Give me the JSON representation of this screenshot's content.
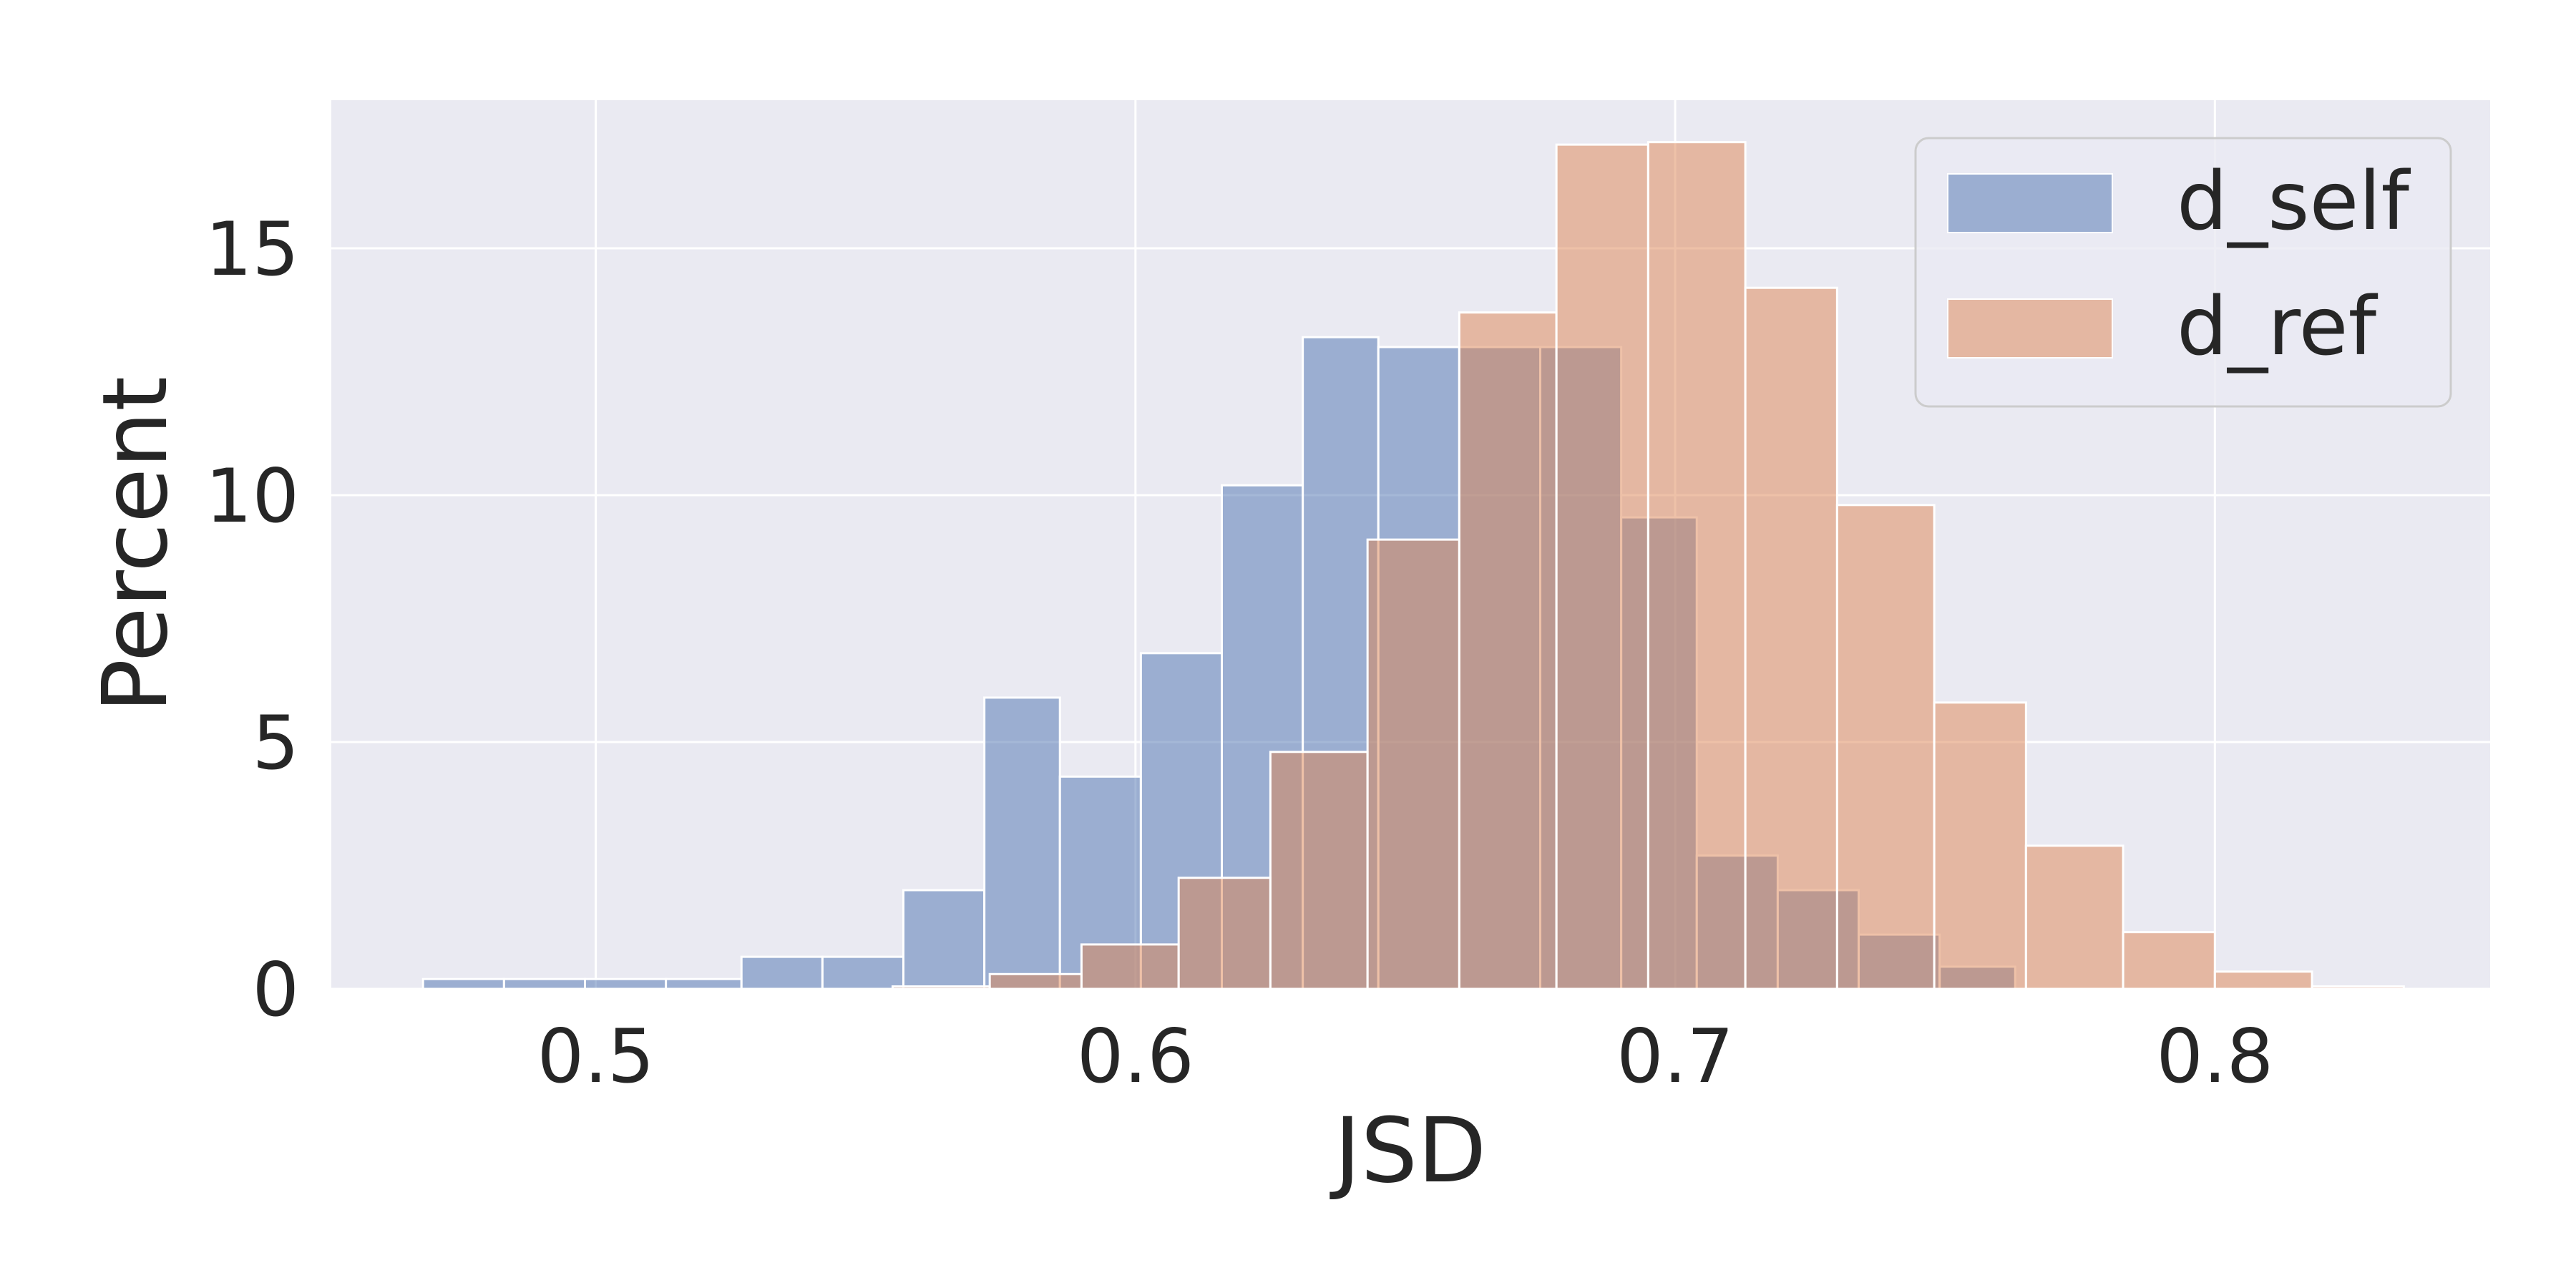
{
  "chart_data": {
    "type": "histogram",
    "xlabel": "JSD",
    "ylabel": "Percent",
    "xlim": [
      0.451,
      0.851
    ],
    "ylim": [
      0,
      18
    ],
    "xticks": [
      "0.5",
      "0.6",
      "0.7",
      "0.8"
    ],
    "xtick_values": [
      0.5,
      0.6,
      0.7,
      0.8
    ],
    "yticks": [
      "0",
      "5",
      "10",
      "15"
    ],
    "ytick_values": [
      0,
      5,
      10,
      15
    ],
    "grid": true,
    "legend_position": "top-right",
    "series": [
      {
        "name": "d_self",
        "color": "#4C72B0",
        "bins": [
          [
            0.468,
            0.483,
            0.2
          ],
          [
            0.483,
            0.498,
            0.2
          ],
          [
            0.498,
            0.513,
            0.2
          ],
          [
            0.513,
            0.527,
            0.2
          ],
          [
            0.527,
            0.542,
            0.65
          ],
          [
            0.542,
            0.557,
            0.65
          ],
          [
            0.557,
            0.572,
            2.0
          ],
          [
            0.572,
            0.586,
            5.9
          ],
          [
            0.586,
            0.601,
            4.3
          ],
          [
            0.601,
            0.616,
            6.8
          ],
          [
            0.616,
            0.631,
            10.2
          ],
          [
            0.631,
            0.645,
            13.2
          ],
          [
            0.645,
            0.66,
            13.0
          ],
          [
            0.66,
            0.675,
            13.0
          ],
          [
            0.675,
            0.69,
            13.0
          ],
          [
            0.69,
            0.704,
            9.55
          ],
          [
            0.704,
            0.719,
            2.7
          ],
          [
            0.719,
            0.734,
            2.0
          ],
          [
            0.734,
            0.749,
            1.1
          ],
          [
            0.749,
            0.763,
            0.45
          ]
        ]
      },
      {
        "name": "d_ref",
        "color": "#DD8452",
        "bins": [
          [
            0.555,
            0.573,
            0.05
          ],
          [
            0.573,
            0.59,
            0.3
          ],
          [
            0.59,
            0.608,
            0.9
          ],
          [
            0.608,
            0.625,
            2.25
          ],
          [
            0.625,
            0.643,
            4.8
          ],
          [
            0.643,
            0.66,
            9.1
          ],
          [
            0.66,
            0.678,
            13.7
          ],
          [
            0.678,
            0.695,
            17.1
          ],
          [
            0.695,
            0.713,
            17.15
          ],
          [
            0.713,
            0.73,
            14.2
          ],
          [
            0.73,
            0.748,
            9.8
          ],
          [
            0.748,
            0.765,
            5.8
          ],
          [
            0.765,
            0.783,
            2.9
          ],
          [
            0.783,
            0.8,
            1.15
          ],
          [
            0.8,
            0.818,
            0.35
          ],
          [
            0.818,
            0.835,
            0.05
          ]
        ]
      }
    ]
  },
  "colors": {
    "plot_background": "#EAEAF2",
    "grid": "#FFFFFF",
    "text": "#262626"
  }
}
